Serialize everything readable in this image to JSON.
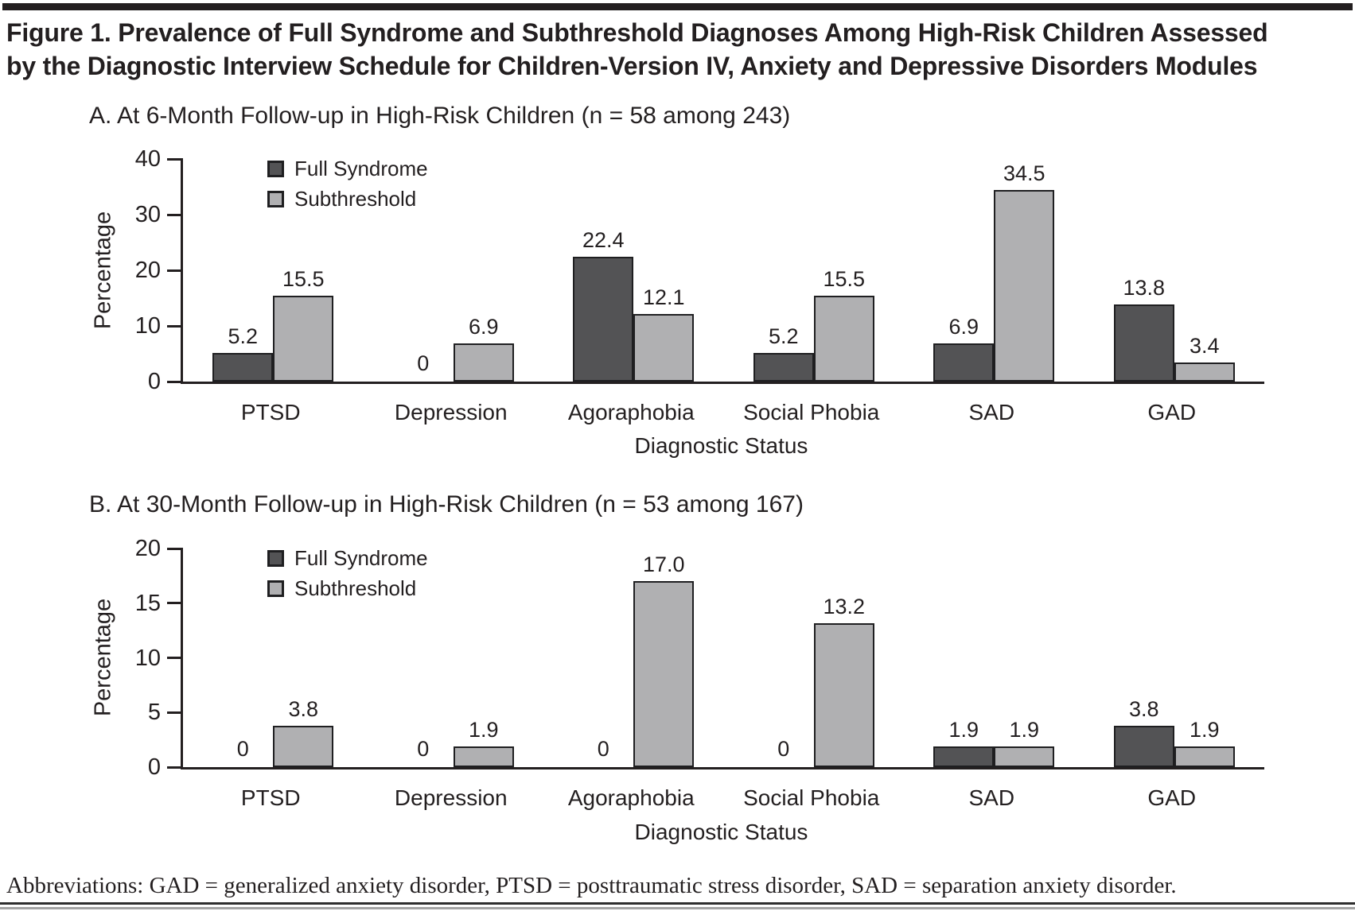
{
  "figure": {
    "title": "Figure 1. Prevalence of Full Syndrome and Subthreshold Diagnoses Among High-Risk Children Assessed by the Diagnostic Interview Schedule for Children-Version IV, Anxiety and Depressive Disorders Modules"
  },
  "footnote": "Abbreviations: GAD = generalized anxiety disorder, PTSD = posttraumatic stress disorder, SAD = separation anxiety disorder.",
  "colors": {
    "full_syndrome": "#535355",
    "subthreshold": "#b0b0b2",
    "text": "#231f20",
    "axis": "#231f20"
  },
  "chart_data": [
    {
      "id": "panel-a",
      "type": "bar",
      "title": "A. At 6-Month Follow-up in High-Risk Children (n = 58 among 243)",
      "xlabel": "Diagnostic Status",
      "ylabel": "Percentage",
      "ylim": [
        0,
        40
      ],
      "yticks": [
        0,
        10,
        20,
        30,
        40
      ],
      "grid": false,
      "legend_position": "top-left",
      "categories": [
        "PTSD",
        "Depression",
        "Agoraphobia",
        "Social Phobia",
        "SAD",
        "GAD"
      ],
      "series": [
        {
          "name": "Full Syndrome",
          "color_key": "full_syndrome",
          "values": [
            5.2,
            0,
            22.4,
            5.2,
            6.9,
            13.8
          ],
          "value_labels": [
            "5.2",
            "0",
            "22.4",
            "5.2",
            "6.9",
            "13.8"
          ]
        },
        {
          "name": "Subthreshold",
          "color_key": "subthreshold",
          "values": [
            15.5,
            6.9,
            12.1,
            15.5,
            34.5,
            3.4
          ],
          "value_labels": [
            "15.5",
            "6.9",
            "12.1",
            "15.5",
            "34.5",
            "3.4"
          ]
        }
      ]
    },
    {
      "id": "panel-b",
      "type": "bar",
      "title": "B. At 30-Month Follow-up in High-Risk Children (n = 53 among 167)",
      "xlabel": "Diagnostic Status",
      "ylabel": "Percentage",
      "ylim": [
        0,
        20
      ],
      "yticks": [
        0,
        5,
        10,
        15,
        20
      ],
      "grid": false,
      "legend_position": "top-left",
      "categories": [
        "PTSD",
        "Depression",
        "Agoraphobia",
        "Social Phobia",
        "SAD",
        "GAD"
      ],
      "series": [
        {
          "name": "Full Syndrome",
          "color_key": "full_syndrome",
          "values": [
            0,
            0,
            0,
            0,
            1.9,
            3.8
          ],
          "value_labels": [
            "0",
            "0",
            "0",
            "0",
            "1.9",
            "3.8"
          ]
        },
        {
          "name": "Subthreshold",
          "color_key": "subthreshold",
          "values": [
            3.8,
            1.9,
            17.0,
            13.2,
            1.9,
            1.9
          ],
          "value_labels": [
            "3.8",
            "1.9",
            "17.0",
            "13.2",
            "1.9",
            "1.9"
          ]
        }
      ]
    }
  ]
}
